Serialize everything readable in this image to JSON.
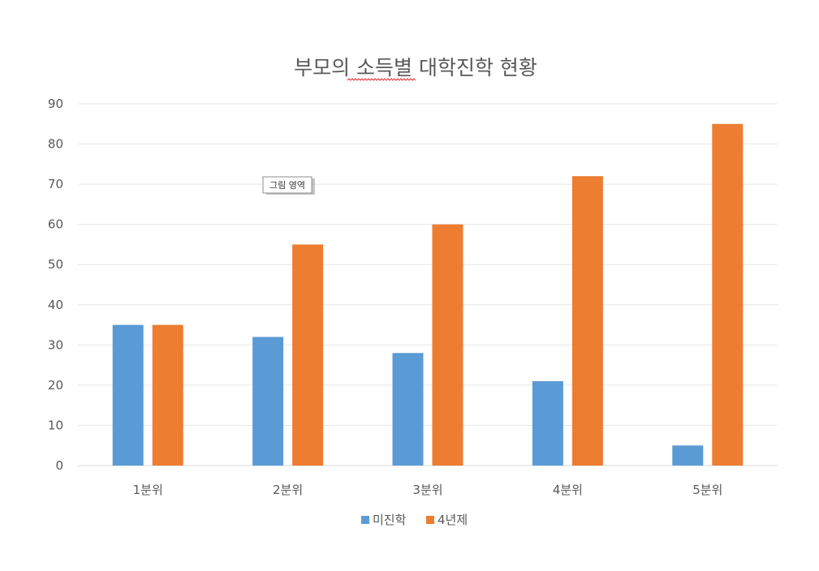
{
  "chart_data": {
    "type": "bar",
    "title": "부모의 소득별 대학진학 현황",
    "categories": [
      "1분위",
      "2분위",
      "3분위",
      "4분위",
      "5분위"
    ],
    "series": [
      {
        "name": "미진학",
        "color": "#5B9BD5",
        "values": [
          35,
          32,
          28,
          21,
          5
        ]
      },
      {
        "name": "4년제",
        "color": "#ED7D31",
        "values": [
          35,
          55,
          60,
          72,
          85
        ]
      }
    ],
    "ylim": [
      0,
      90
    ],
    "yticks": [
      0,
      10,
      20,
      30,
      40,
      50,
      60,
      70,
      80,
      90
    ],
    "grid": true,
    "legend_position": "bottom"
  },
  "tooltip": {
    "text": "그림 영역"
  }
}
